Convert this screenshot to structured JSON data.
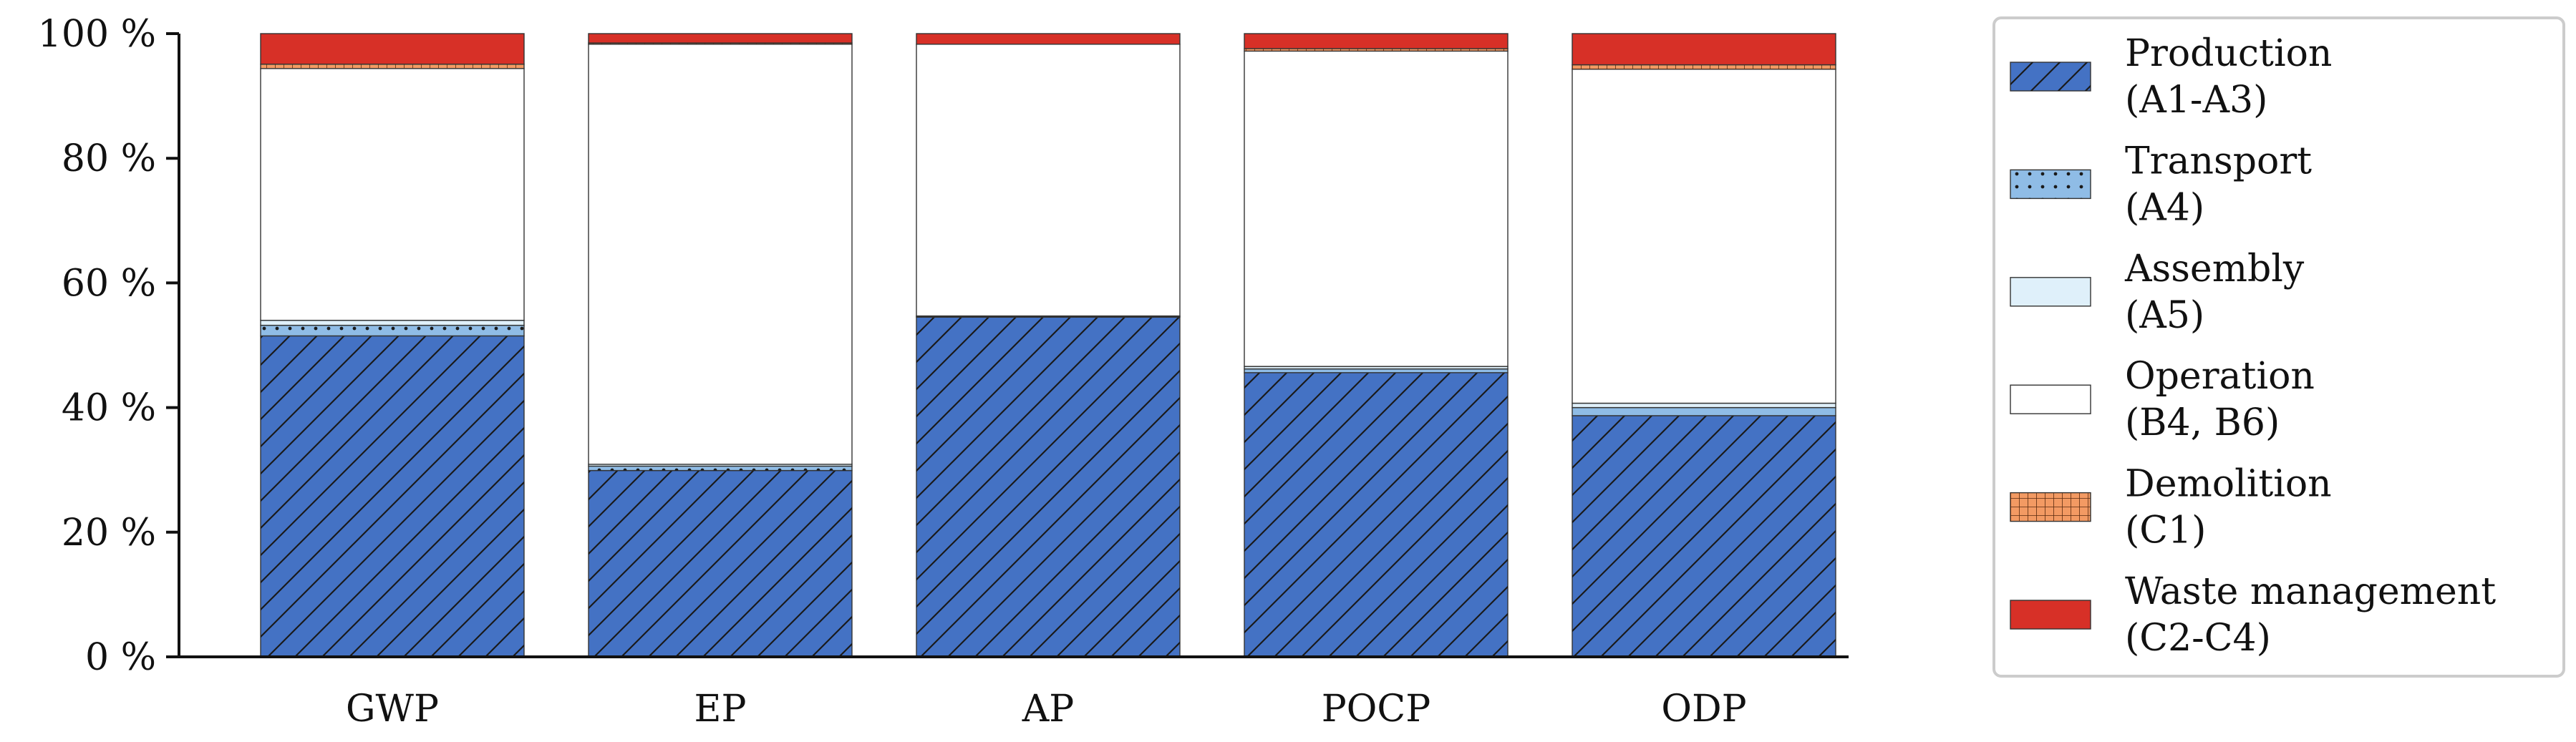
{
  "chart_data": {
    "type": "bar",
    "stacked": true,
    "categories": [
      "GWP",
      "EP",
      "AP",
      "POCP",
      "ODP"
    ],
    "ylim": [
      0,
      100
    ],
    "yticks": [
      0,
      20,
      40,
      60,
      80,
      100
    ],
    "ytick_suffix": " %",
    "series": [
      {
        "key": "production",
        "name": "Production",
        "sub": "(A1-A3)",
        "color": "#4472c4",
        "pattern": "diagonal-hatch",
        "values": [
          51.5,
          29.9,
          54.5,
          45.6,
          38.7
        ]
      },
      {
        "key": "transport",
        "name": "Transport",
        "sub": "(A4)",
        "color": "#8fbce6",
        "pattern": "dots",
        "values": [
          1.7,
          0.7,
          0.1,
          0.6,
          1.3
        ]
      },
      {
        "key": "assembly",
        "name": "Assembly",
        "sub": "(A5)",
        "color": "#dff0fa",
        "pattern": "none",
        "values": [
          0.8,
          0.3,
          0.1,
          0.4,
          0.7
        ]
      },
      {
        "key": "operation",
        "name": "Operation",
        "sub": "(B4, B6)",
        "color": "#ffffff",
        "pattern": "none",
        "values": [
          40.4,
          67.4,
          43.6,
          50.6,
          53.6
        ]
      },
      {
        "key": "demolition",
        "name": "Demolition",
        "sub": "(C1)",
        "color": "#f39a63",
        "pattern": "grid",
        "values": [
          0.7,
          0.2,
          0.0,
          0.4,
          0.7
        ]
      },
      {
        "key": "waste",
        "name": "Waste management",
        "sub": "(C2-C4)",
        "color": "#d73027",
        "pattern": "none",
        "values": [
          4.9,
          1.5,
          1.7,
          2.4,
          5.0
        ]
      }
    ],
    "legend_position": "right"
  }
}
